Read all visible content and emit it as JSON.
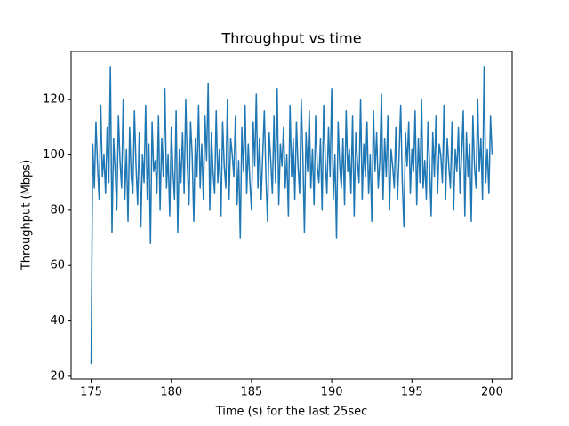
{
  "chart_data": {
    "type": "line",
    "title": "Throughput vs time",
    "xlabel": "Time (s) for the last 25sec",
    "ylabel": "Throughput (Mbps)",
    "color": "#1f77b4",
    "grid": false,
    "xlim": [
      173.75,
      201.25
    ],
    "ylim": [
      19.0,
      137.4
    ],
    "xticks": [
      175,
      180,
      185,
      190,
      195,
      200
    ],
    "yticks": [
      20,
      40,
      60,
      80,
      100,
      120
    ],
    "x": [
      175.0,
      175.1,
      175.2,
      175.3,
      175.4,
      175.5,
      175.6,
      175.7,
      175.8,
      175.9,
      176.0,
      176.1,
      176.2,
      176.3,
      176.4,
      176.5,
      176.6,
      176.7,
      176.8,
      176.9,
      177.0,
      177.1,
      177.2,
      177.3,
      177.4,
      177.5,
      177.6,
      177.7,
      177.8,
      177.9,
      178.0,
      178.1,
      178.2,
      178.3,
      178.4,
      178.5,
      178.6,
      178.7,
      178.8,
      178.9,
      179.0,
      179.1,
      179.2,
      179.3,
      179.4,
      179.5,
      179.6,
      179.7,
      179.8,
      179.9,
      180.0,
      180.1,
      180.2,
      180.3,
      180.4,
      180.5,
      180.6,
      180.7,
      180.8,
      180.9,
      181.0,
      181.1,
      181.2,
      181.3,
      181.4,
      181.5,
      181.6,
      181.7,
      181.8,
      181.9,
      182.0,
      182.1,
      182.2,
      182.3,
      182.4,
      182.5,
      182.6,
      182.7,
      182.8,
      182.9,
      183.0,
      183.1,
      183.2,
      183.3,
      183.4,
      183.5,
      183.6,
      183.7,
      183.8,
      183.9,
      184.0,
      184.1,
      184.2,
      184.3,
      184.4,
      184.5,
      184.6,
      184.7,
      184.8,
      184.9,
      185.0,
      185.1,
      185.2,
      185.3,
      185.4,
      185.5,
      185.6,
      185.7,
      185.8,
      185.9,
      186.0,
      186.1,
      186.2,
      186.3,
      186.4,
      186.5,
      186.6,
      186.7,
      186.8,
      186.9,
      187.0,
      187.1,
      187.2,
      187.3,
      187.4,
      187.5,
      187.6,
      187.7,
      187.8,
      187.9,
      188.0,
      188.1,
      188.2,
      188.3,
      188.4,
      188.5,
      188.6,
      188.7,
      188.8,
      188.9,
      189.0,
      189.1,
      189.2,
      189.3,
      189.4,
      189.5,
      189.6,
      189.7,
      189.8,
      189.9,
      190.0,
      190.1,
      190.2,
      190.3,
      190.4,
      190.5,
      190.6,
      190.7,
      190.8,
      190.9,
      191.0,
      191.1,
      191.2,
      191.3,
      191.4,
      191.5,
      191.6,
      191.7,
      191.8,
      191.9,
      192.0,
      192.1,
      192.2,
      192.3,
      192.4,
      192.5,
      192.6,
      192.7,
      192.8,
      192.9,
      193.0,
      193.1,
      193.2,
      193.3,
      193.4,
      193.5,
      193.6,
      193.7,
      193.8,
      193.9,
      194.0,
      194.1,
      194.2,
      194.3,
      194.4,
      194.5,
      194.6,
      194.7,
      194.8,
      194.9,
      195.0,
      195.1,
      195.2,
      195.3,
      195.4,
      195.5,
      195.6,
      195.7,
      195.8,
      195.9,
      196.0,
      196.1,
      196.2,
      196.3,
      196.4,
      196.5,
      196.6,
      196.7,
      196.8,
      196.9,
      197.0,
      197.1,
      197.2,
      197.3,
      197.4,
      197.5,
      197.6,
      197.7,
      197.8,
      197.9,
      198.0,
      198.1,
      198.2,
      198.3,
      198.4,
      198.5,
      198.6,
      198.7,
      198.8,
      198.9,
      199.0,
      199.1,
      199.2,
      199.3,
      199.4,
      199.5,
      199.6,
      199.7,
      199.8,
      199.9,
      200.0
    ],
    "values": [
      24.4,
      104,
      88,
      112,
      96,
      84,
      118,
      92,
      100,
      86,
      110,
      90,
      132,
      72,
      106,
      94,
      80,
      114,
      98,
      88,
      120,
      84,
      102,
      76,
      110,
      92,
      86,
      116,
      96,
      82,
      108,
      74,
      100,
      90,
      118,
      84,
      104,
      68,
      112,
      94,
      98,
      86,
      114,
      80,
      106,
      92,
      124,
      88,
      100,
      78,
      110,
      94,
      84,
      116,
      72,
      102,
      90,
      108,
      86,
      120,
      96,
      82,
      112,
      100,
      76,
      106,
      92,
      118,
      88,
      104,
      84,
      114,
      98,
      126,
      80,
      108,
      94,
      86,
      116,
      90,
      102,
      78,
      112,
      96,
      88,
      120,
      84,
      106,
      100,
      92,
      114,
      82,
      98,
      70,
      110,
      94,
      118,
      86,
      104,
      90,
      80,
      112,
      96,
      122,
      88,
      106,
      84,
      100,
      116,
      92,
      76,
      108,
      98,
      86,
      114,
      90,
      124,
      82,
      104,
      96,
      110,
      88,
      100,
      78,
      118,
      92,
      106,
      84,
      112,
      96,
      86,
      120,
      100,
      72,
      108,
      94,
      116,
      88,
      102,
      82,
      114,
      96,
      90,
      106,
      80,
      118,
      98,
      86,
      110,
      92,
      124,
      84,
      100,
      70,
      112,
      96,
      88,
      106,
      82,
      116,
      94,
      102,
      86,
      114,
      78,
      108,
      98,
      90,
      120,
      84,
      104,
      92,
      112,
      86,
      100,
      76,
      116,
      94,
      108,
      88,
      98,
      122,
      84,
      106,
      92,
      114,
      80,
      102,
      96,
      88,
      110,
      84,
      100,
      118,
      90,
      74,
      108,
      96,
      112,
      86,
      102,
      94,
      116,
      82,
      106,
      90,
      120,
      88,
      98,
      84,
      112,
      96,
      78,
      108,
      92,
      114,
      86,
      104,
      100,
      90,
      118,
      84,
      106,
      96,
      88,
      112,
      80,
      102,
      94,
      110,
      86,
      100,
      116,
      78,
      108,
      92,
      104,
      76,
      114,
      96,
      88,
      120,
      94,
      106,
      84,
      132,
      90,
      102,
      86,
      114,
      100
    ]
  }
}
